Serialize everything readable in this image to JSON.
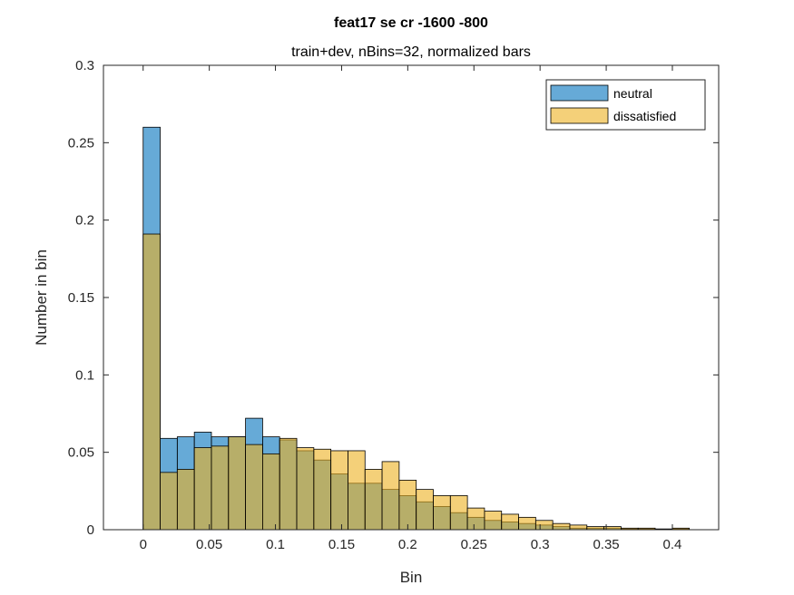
{
  "chart_data": {
    "type": "bar",
    "title": "feat17 se cr -1600 -800",
    "subtitle": "train+dev, nBins=32, normalized bars",
    "xlabel": "Bin",
    "ylabel": "Number in bin",
    "xlim": [
      -0.03,
      0.435
    ],
    "ylim": [
      0,
      0.3
    ],
    "xticks": [
      0,
      0.05,
      0.1,
      0.15,
      0.2,
      0.25,
      0.3,
      0.35,
      0.4
    ],
    "xtick_labels": [
      "0",
      "0.05",
      "0.1",
      "0.15",
      "0.2",
      "0.25",
      "0.3",
      "0.35",
      "0.4"
    ],
    "yticks": [
      0,
      0.05,
      0.1,
      0.15,
      0.2,
      0.25,
      0.3
    ],
    "ytick_labels": [
      "0",
      "0.05",
      "0.1",
      "0.15",
      "0.2",
      "0.25",
      "0.3"
    ],
    "legend_position": "top-right",
    "bin_start": 0,
    "bin_width": 0.0129,
    "series": [
      {
        "name": "neutral",
        "color": "#0072BD",
        "values": [
          0.26,
          0.059,
          0.06,
          0.063,
          0.06,
          0.06,
          0.072,
          0.06,
          0.058,
          0.051,
          0.045,
          0.036,
          0.03,
          0.03,
          0.026,
          0.022,
          0.018,
          0.015,
          0.011,
          0.008,
          0.006,
          0.005,
          0.004,
          0.003,
          0.002,
          0.001,
          0.001,
          0.001,
          0.0005,
          0.0005,
          0.0003,
          0.0005
        ]
      },
      {
        "name": "dissatisfied",
        "color": "#EDB120",
        "values": [
          0.191,
          0.037,
          0.039,
          0.053,
          0.054,
          0.06,
          0.055,
          0.049,
          0.059,
          0.053,
          0.052,
          0.051,
          0.051,
          0.039,
          0.044,
          0.032,
          0.026,
          0.022,
          0.022,
          0.014,
          0.012,
          0.01,
          0.008,
          0.006,
          0.004,
          0.003,
          0.002,
          0.002,
          0.001,
          0.001,
          0.0005,
          0.001
        ]
      }
    ]
  }
}
